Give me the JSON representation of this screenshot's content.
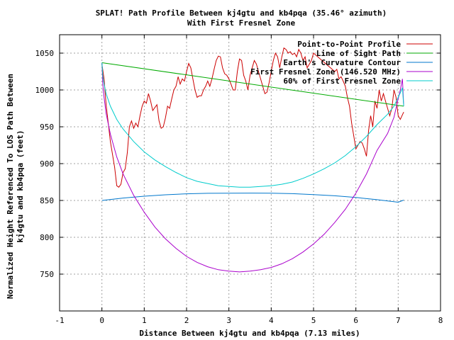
{
  "chart_data": {
    "type": "line",
    "title": "SPLAT! Path Profile Between kj4gtu and kb4pqa (35.46° azimuth)",
    "subtitle": "With First Fresnel Zone",
    "xlabel": "Distance Between kj4gtu and kb4pqa (7.13 miles)",
    "ylabel_line1": "Normalized Height Referenced To LOS Path Between",
    "ylabel_line2": "kj4gtu and kb4pqa (feet)",
    "xlim": [
      -1,
      8
    ],
    "ylim": [
      700,
      1075
    ],
    "xticks": [
      "-1",
      "0",
      "1",
      "2",
      "3",
      "4",
      "5",
      "6",
      "7",
      "8"
    ],
    "xtick_values": [
      -1,
      0,
      1,
      2,
      3,
      4,
      5,
      6,
      7,
      8
    ],
    "yticks": [
      "750",
      "800",
      "850",
      "900",
      "950",
      "1000",
      "1050"
    ],
    "ytick_values": [
      750,
      800,
      850,
      900,
      950,
      1000,
      1050
    ],
    "grid": true,
    "legend_position": "top-right",
    "path_length": 7.13,
    "series": [
      {
        "name": "Point-to-Point Profile",
        "color": "#cc0000",
        "x": [
          0,
          0.05,
          0.1,
          0.2,
          0.3,
          0.35,
          0.4,
          0.45,
          0.5,
          0.55,
          0.6,
          0.65,
          0.7,
          0.75,
          0.8,
          0.85,
          0.9,
          0.95,
          1.0,
          1.05,
          1.1,
          1.15,
          1.2,
          1.3,
          1.35,
          1.4,
          1.45,
          1.5,
          1.55,
          1.6,
          1.65,
          1.7,
          1.75,
          1.8,
          1.85,
          1.9,
          1.95,
          2.0,
          2.05,
          2.1,
          2.15,
          2.2,
          2.25,
          2.3,
          2.35,
          2.4,
          2.45,
          2.5,
          2.55,
          2.6,
          2.65,
          2.7,
          2.75,
          2.8,
          2.85,
          2.9,
          2.95,
          3.0,
          3.05,
          3.1,
          3.15,
          3.2,
          3.25,
          3.3,
          3.35,
          3.4,
          3.45,
          3.5,
          3.55,
          3.6,
          3.65,
          3.7,
          3.75,
          3.8,
          3.85,
          3.9,
          3.95,
          4.0,
          4.05,
          4.1,
          4.15,
          4.2,
          4.25,
          4.3,
          4.35,
          4.4,
          4.45,
          4.5,
          4.55,
          4.6,
          4.65,
          4.7,
          4.75,
          4.8,
          4.85,
          4.9,
          4.95,
          5.0,
          5.1,
          5.2,
          5.3,
          5.4,
          5.5,
          5.55,
          5.6,
          5.65,
          5.7,
          5.75,
          5.8,
          5.85,
          5.9,
          6.0,
          6.1,
          6.15,
          6.2,
          6.25,
          6.3,
          6.35,
          6.4,
          6.45,
          6.5,
          6.55,
          6.6,
          6.65,
          6.7,
          6.75,
          6.8,
          6.85,
          6.9,
          6.95,
          7.0,
          7.05,
          7.13
        ],
        "y": [
          1035,
          1015,
          980,
          930,
          895,
          870,
          868,
          872,
          888,
          893,
          915,
          950,
          958,
          948,
          955,
          950,
          965,
          978,
          985,
          982,
          995,
          985,
          972,
          980,
          958,
          948,
          950,
          962,
          978,
          975,
          988,
          1000,
          1005,
          1018,
          1008,
          1015,
          1012,
          1025,
          1036,
          1030,
          1015,
          1000,
          990,
          992,
          992,
          1000,
          1005,
          1012,
          1005,
          1015,
          1028,
          1040,
          1046,
          1045,
          1030,
          1022,
          1020,
          1015,
          1008,
          1000,
          1000,
          1025,
          1042,
          1040,
          1020,
          1012,
          1000,
          1020,
          1030,
          1040,
          1035,
          1025,
          1015,
          1005,
          995,
          997,
          1010,
          1025,
          1040,
          1050,
          1045,
          1030,
          1045,
          1057,
          1055,
          1050,
          1052,
          1048,
          1050,
          1045,
          1055,
          1050,
          1040,
          1045,
          1030,
          1035,
          1040,
          1050,
          1045,
          1040,
          1035,
          1030,
          1025,
          1028,
          1015,
          1018,
          1012,
          1005,
          990,
          978,
          955,
          920,
          930,
          928,
          920,
          910,
          945,
          965,
          950,
          985,
          975,
          1000,
          985,
          995,
          985,
          975,
          965,
          975,
          1000,
          990,
          965,
          960,
          970
        ]
      },
      {
        "name": "Line of Sight Path",
        "color": "#00aa00",
        "x": [
          0,
          7.13
        ],
        "y": [
          1037,
          978
        ]
      },
      {
        "name": "Earth's Curvature Contour",
        "color": "#0077cc",
        "x": [
          0,
          0.5,
          1.0,
          1.5,
          2.0,
          2.5,
          3.0,
          3.5,
          3.565,
          4.0,
          4.5,
          5.0,
          5.5,
          6.0,
          6.5,
          7.0,
          7.13
        ],
        "y": [
          850,
          853.3,
          855.8,
          857.7,
          859.0,
          859.7,
          859.9,
          860.0,
          860.0,
          859.8,
          859.2,
          858.0,
          856.3,
          854.0,
          851.1,
          847.6,
          850.5
        ]
      },
      {
        "name": "First Fresnel Zone (146.520 MHz)",
        "color": "#aa00cc",
        "x": [
          0,
          0.02,
          0.05,
          0.1,
          0.2,
          0.35,
          0.5,
          0.75,
          1.0,
          1.25,
          1.5,
          1.75,
          2.0,
          2.25,
          2.5,
          2.75,
          3.0,
          3.25,
          3.5,
          3.75,
          4.0,
          4.25,
          4.5,
          4.75,
          5.0,
          5.25,
          5.5,
          5.75,
          6.0,
          6.25,
          6.5,
          6.75,
          6.9,
          7.0,
          7.05,
          7.1,
          7.13
        ],
        "y": [
          1037,
          1008,
          990,
          968,
          940,
          909,
          886,
          857,
          834,
          814,
          798,
          785,
          774,
          766,
          760,
          756,
          754,
          753,
          754,
          756,
          759,
          764,
          771,
          780,
          791,
          804,
          820,
          838,
          860,
          886,
          918,
          941,
          963,
          988,
          1000,
          1015,
          978
        ]
      },
      {
        "name": "60% of First Fresnel Zone",
        "color": "#00cccc",
        "x": [
          0,
          0.02,
          0.05,
          0.1,
          0.2,
          0.35,
          0.5,
          0.75,
          1.0,
          1.25,
          1.5,
          1.75,
          2.0,
          2.25,
          2.5,
          2.75,
          3.0,
          3.25,
          3.5,
          3.75,
          4.0,
          4.25,
          4.5,
          4.75,
          5.0,
          5.25,
          5.5,
          5.75,
          6.0,
          6.25,
          6.5,
          6.75,
          6.9,
          7.0,
          7.05,
          7.1,
          7.13
        ],
        "y": [
          1037,
          1019,
          1008,
          995,
          978,
          960,
          947,
          930,
          916,
          905,
          896,
          888,
          881,
          876,
          873,
          870,
          869,
          868,
          868,
          869,
          870,
          872,
          875,
          880,
          886,
          893,
          901,
          911,
          923,
          937,
          953,
          967,
          978,
          990,
          996,
          1003,
          978
        ]
      }
    ]
  }
}
